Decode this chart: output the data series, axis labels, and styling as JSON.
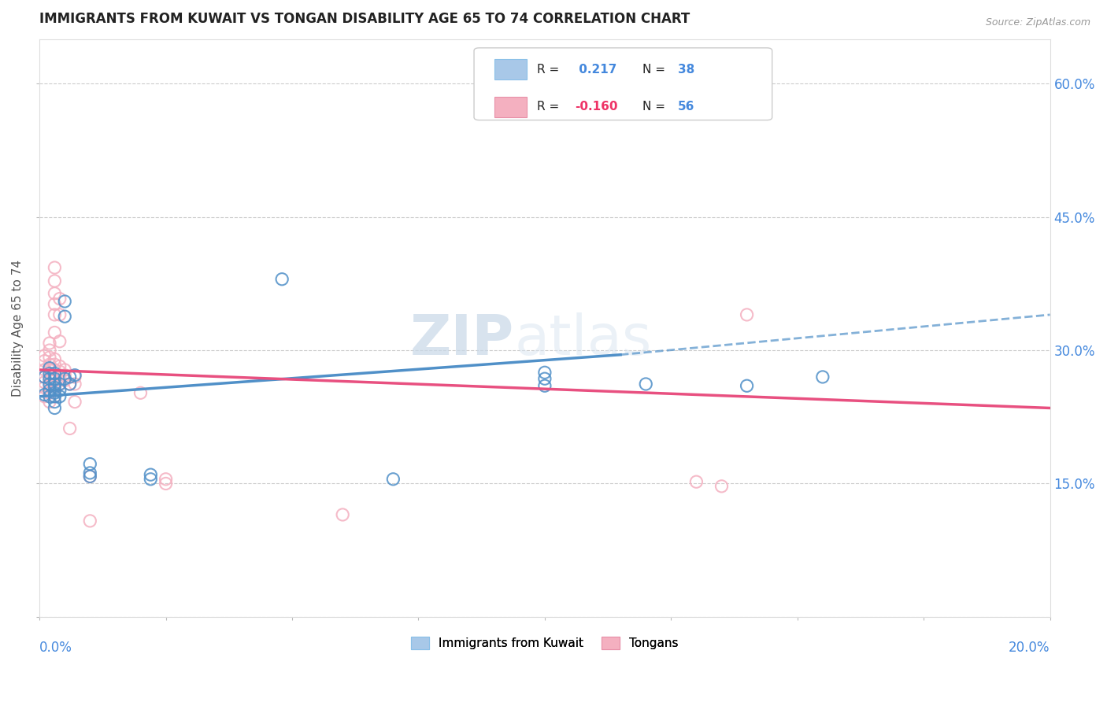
{
  "title": "IMMIGRANTS FROM KUWAIT VS TONGAN DISABILITY AGE 65 TO 74 CORRELATION CHART",
  "source": "Source: ZipAtlas.com",
  "ylabel": "Disability Age 65 to 74",
  "xlim": [
    0.0,
    0.2
  ],
  "ylim": [
    0.0,
    0.65
  ],
  "xticks": [
    0.0,
    0.025,
    0.05,
    0.075,
    0.1,
    0.125,
    0.15,
    0.175,
    0.2
  ],
  "yticks": [
    0.0,
    0.15,
    0.3,
    0.45,
    0.6
  ],
  "yticklabels": [
    "",
    "15.0%",
    "30.0%",
    "45.0%",
    "60.0%"
  ],
  "color_blue": "#A8C8E8",
  "color_pink": "#F4B0C0",
  "color_blue_dark": "#5090C8",
  "color_pink_dark": "#E85080",
  "color_blue_text": "#4488DD",
  "color_pink_text": "#EE3366",
  "color_axis_text": "#4488DD",
  "watermark_zip": "ZIP",
  "watermark_atlas": "atlas",
  "blue_points": [
    [
      0.001,
      0.25
    ],
    [
      0.001,
      0.27
    ],
    [
      0.002,
      0.248
    ],
    [
      0.002,
      0.255
    ],
    [
      0.002,
      0.262
    ],
    [
      0.002,
      0.268
    ],
    [
      0.002,
      0.274
    ],
    [
      0.002,
      0.28
    ],
    [
      0.003,
      0.235
    ],
    [
      0.003,
      0.242
    ],
    [
      0.003,
      0.248
    ],
    [
      0.003,
      0.252
    ],
    [
      0.003,
      0.258
    ],
    [
      0.003,
      0.262
    ],
    [
      0.003,
      0.268
    ],
    [
      0.003,
      0.274
    ],
    [
      0.004,
      0.248
    ],
    [
      0.004,
      0.255
    ],
    [
      0.004,
      0.262
    ],
    [
      0.005,
      0.268
    ],
    [
      0.005,
      0.338
    ],
    [
      0.005,
      0.355
    ],
    [
      0.006,
      0.262
    ],
    [
      0.006,
      0.27
    ],
    [
      0.007,
      0.272
    ],
    [
      0.01,
      0.158
    ],
    [
      0.01,
      0.162
    ],
    [
      0.01,
      0.172
    ],
    [
      0.022,
      0.155
    ],
    [
      0.022,
      0.16
    ],
    [
      0.048,
      0.38
    ],
    [
      0.1,
      0.26
    ],
    [
      0.1,
      0.268
    ],
    [
      0.12,
      0.262
    ],
    [
      0.14,
      0.26
    ],
    [
      0.155,
      0.27
    ],
    [
      0.1,
      0.275
    ],
    [
      0.07,
      0.155
    ]
  ],
  "pink_points": [
    [
      0.001,
      0.248
    ],
    [
      0.001,
      0.258
    ],
    [
      0.001,
      0.264
    ],
    [
      0.001,
      0.27
    ],
    [
      0.001,
      0.278
    ],
    [
      0.001,
      0.288
    ],
    [
      0.001,
      0.294
    ],
    [
      0.002,
      0.242
    ],
    [
      0.002,
      0.252
    ],
    [
      0.002,
      0.26
    ],
    [
      0.002,
      0.266
    ],
    [
      0.002,
      0.272
    ],
    [
      0.002,
      0.278
    ],
    [
      0.002,
      0.284
    ],
    [
      0.002,
      0.292
    ],
    [
      0.002,
      0.3
    ],
    [
      0.002,
      0.308
    ],
    [
      0.003,
      0.248
    ],
    [
      0.003,
      0.255
    ],
    [
      0.003,
      0.26
    ],
    [
      0.003,
      0.266
    ],
    [
      0.003,
      0.272
    ],
    [
      0.003,
      0.278
    ],
    [
      0.003,
      0.284
    ],
    [
      0.003,
      0.29
    ],
    [
      0.003,
      0.34
    ],
    [
      0.003,
      0.352
    ],
    [
      0.003,
      0.364
    ],
    [
      0.003,
      0.378
    ],
    [
      0.003,
      0.393
    ],
    [
      0.004,
      0.262
    ],
    [
      0.004,
      0.27
    ],
    [
      0.004,
      0.276
    ],
    [
      0.004,
      0.282
    ],
    [
      0.004,
      0.31
    ],
    [
      0.004,
      0.34
    ],
    [
      0.004,
      0.358
    ],
    [
      0.005,
      0.266
    ],
    [
      0.005,
      0.272
    ],
    [
      0.005,
      0.278
    ],
    [
      0.006,
      0.212
    ],
    [
      0.006,
      0.262
    ],
    [
      0.007,
      0.242
    ],
    [
      0.007,
      0.262
    ],
    [
      0.007,
      0.27
    ],
    [
      0.01,
      0.158
    ],
    [
      0.01,
      0.108
    ],
    [
      0.02,
      0.252
    ],
    [
      0.025,
      0.155
    ],
    [
      0.025,
      0.15
    ],
    [
      0.06,
      0.115
    ],
    [
      0.13,
      0.152
    ],
    [
      0.135,
      0.147
    ],
    [
      0.14,
      0.34
    ],
    [
      0.003,
      0.32
    ]
  ],
  "blue_line": {
    "x0": 0.0,
    "y0": 0.248,
    "x1": 0.115,
    "y1": 0.295
  },
  "blue_line_ext": {
    "x0": 0.115,
    "y0": 0.295,
    "x1": 0.2,
    "y1": 0.34
  },
  "pink_line": {
    "x0": 0.0,
    "y0": 0.278,
    "x1": 0.2,
    "y1": 0.235
  }
}
